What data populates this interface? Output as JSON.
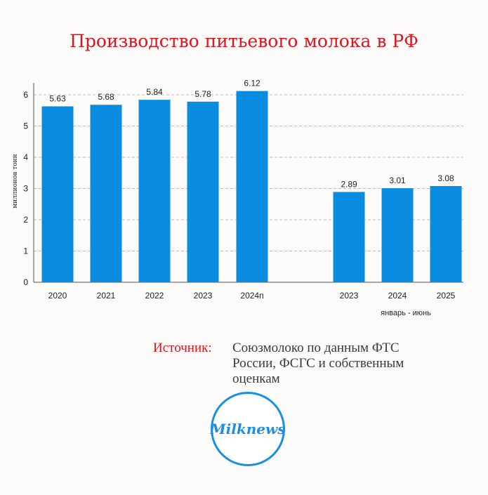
{
  "title": "Производство питьевого молока в РФ",
  "chart_data": {
    "type": "bar",
    "categories": [
      "2020",
      "2021",
      "2022",
      "2023",
      "2024п",
      "2023",
      "2024",
      "2025"
    ],
    "values": [
      5.63,
      5.68,
      5.84,
      5.78,
      6.12,
      2.89,
      3.01,
      3.08
    ],
    "data_labels": [
      "5.63",
      "5.68",
      "5.84",
      "5.78",
      "6.12",
      "2.89",
      "3.01",
      "3.08"
    ],
    "groups": [
      {
        "label": "",
        "indices": [
          0,
          1,
          2,
          3,
          4
        ]
      },
      {
        "label": "январь - июнь",
        "indices": [
          5,
          6,
          7
        ]
      }
    ],
    "ylabel": "миллионов тонн",
    "yticks": [
      "0",
      "1",
      "2",
      "3",
      "4",
      "5",
      "6"
    ],
    "ylim": [
      0,
      6.5
    ],
    "grid": true,
    "bar_color": "#0a8de0"
  },
  "source": {
    "label": "Источник:",
    "text": "Союзмолоко по данным ФТС России, ФСГС и собственным оценкам"
  },
  "logo": {
    "text": "Milknews",
    "color": "#1a8fe3"
  }
}
